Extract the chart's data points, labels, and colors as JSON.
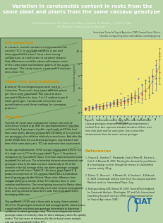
{
  "title": "Variation in carotenoids content in roots from the\nsame plant and plants from the same cassava genotype",
  "authors": "M. Dominguez-Garcia, A.L. Chavez, D. Dufour, J. Sanchez, N. Morante, J.C. Perez, F. Calle\nI.A. Moreno, H. Debouck and L.A. Becerra-L.",
  "bg_color": "#b8d4a8",
  "header_bg": "#7aaa6a",
  "plot_bg": "#f0e878",
  "title_color": "#ffffff",
  "section_color": "#c89010",
  "body_text_color": "#222222",
  "leaf_overlay_color": "#6a9a58",
  "intro_title": "Introduction",
  "methods_title": "Materials and methods",
  "results_title": "Results",
  "references_title": "References",
  "figure_caption": "Figure 1.  Carotenoids content (ug/g fw) in roots from different\ncassava genotypes measured using the spectrophotometric\nmethod. Error bars represent standard deviation of three roots\nfrom each plant and the same plant. Lines connect the\nmeasurements from the same cassava genotype.",
  "plot_xlabel": "Genotype",
  "plot_ylabel": "Carotenoids (ug/g fw)",
  "n_genotypes": 22,
  "mean_values": [
    0.5,
    0.6,
    0.7,
    0.8,
    0.9,
    1.0,
    1.1,
    1.2,
    1.4,
    1.5,
    1.6,
    1.8,
    2.0,
    2.2,
    2.5,
    2.8,
    3.2,
    3.6,
    4.0,
    5.0,
    6.0,
    7.5
  ],
  "error_values": [
    0.25,
    0.3,
    0.35,
    0.4,
    0.35,
    0.45,
    0.5,
    0.45,
    0.5,
    0.6,
    0.55,
    0.7,
    0.8,
    0.9,
    1.0,
    1.2,
    1.3,
    1.5,
    1.8,
    2.0,
    2.5,
    3.0
  ],
  "dot_color_plant": "#cc3333",
  "dot_color_geno": "#3355bb",
  "line_color": "#555555",
  "ciat_color": "#1a5fa8",
  "plot_ylim_max": 12.0,
  "plot_yticks": [
    0,
    2,
    4,
    6,
    8,
    10
  ]
}
